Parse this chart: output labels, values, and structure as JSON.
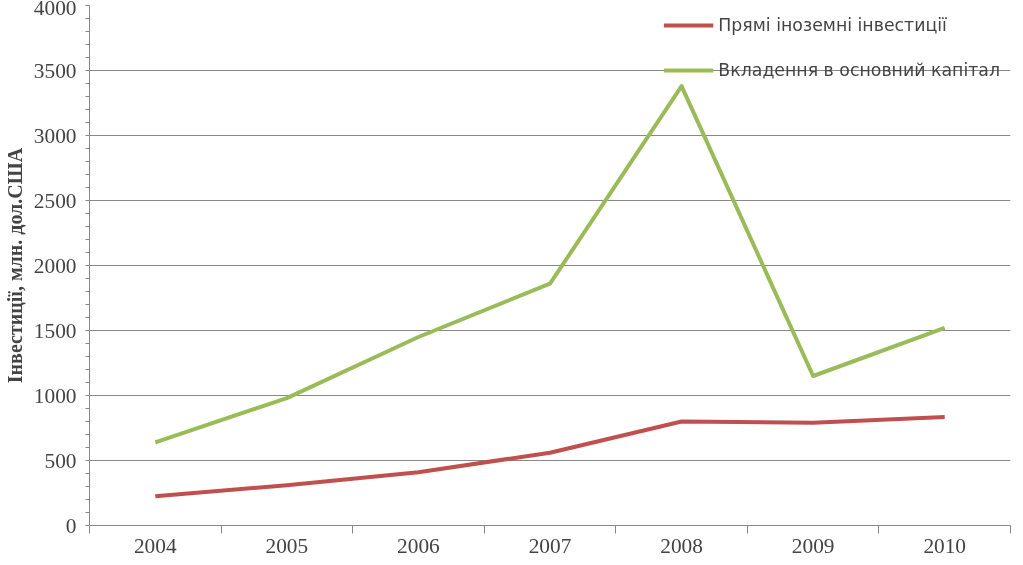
{
  "chart_data": {
    "type": "line",
    "ylabel": "Інвестиції, млн. дол.США",
    "categories": [
      "2004",
      "2005",
      "2006",
      "2007",
      "2008",
      "2009",
      "2010"
    ],
    "series": [
      {
        "name": "Прямі іноземні інвестиції",
        "color": "#c0504d",
        "values": [
          225,
          310,
          410,
          560,
          800,
          790,
          835
        ]
      },
      {
        "name": "Вкладення в основний капітал",
        "color": "#9bbb59",
        "values": [
          640,
          980,
          1450,
          1860,
          3380,
          1150,
          1520
        ]
      }
    ],
    "ylim": [
      0,
      4000
    ],
    "yticks": [
      0,
      500,
      1000,
      1500,
      2000,
      2500,
      3000,
      3500,
      4000
    ],
    "grid": "y",
    "legend": "top_right",
    "marker": "none",
    "line_style": "solid"
  }
}
